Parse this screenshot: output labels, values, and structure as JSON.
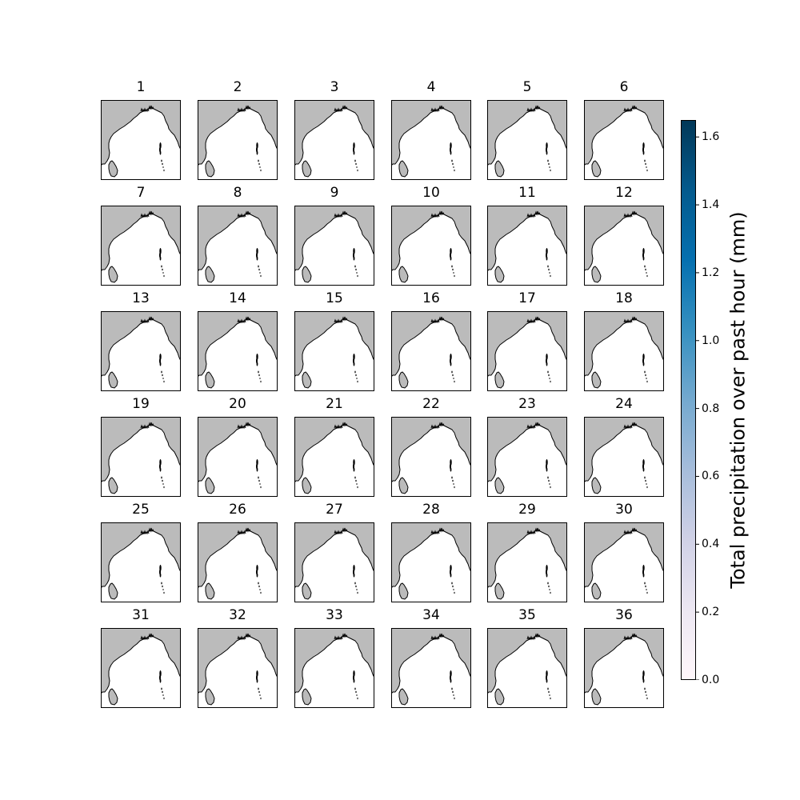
{
  "panels": [
    "1",
    "2",
    "3",
    "4",
    "5",
    "6",
    "7",
    "8",
    "9",
    "10",
    "11",
    "12",
    "13",
    "14",
    "15",
    "16",
    "17",
    "18",
    "19",
    "20",
    "21",
    "22",
    "23",
    "24",
    "25",
    "26",
    "27",
    "28",
    "29",
    "30",
    "31",
    "32",
    "33",
    "34",
    "35",
    "36"
  ],
  "colorbar": {
    "label": "Total precipitation over past hour (mm)",
    "min": 0.0,
    "max": 1.65,
    "ticks": [
      "0.0",
      "0.2",
      "0.4",
      "0.6",
      "0.8",
      "1.0",
      "1.2",
      "1.4",
      "1.6"
    ],
    "colormap": "PuBu",
    "colors": [
      "#fff7fb",
      "#ece7f2",
      "#d0d1e6",
      "#a6bddb",
      "#74a9cf",
      "#3690c0",
      "#0570b0",
      "#045a8d",
      "#023858"
    ]
  },
  "map": {
    "land_color": "#bbbbbb",
    "sea_color": "#ffffff",
    "coastline_color": "#000000",
    "precipitation_shown": "none"
  }
}
